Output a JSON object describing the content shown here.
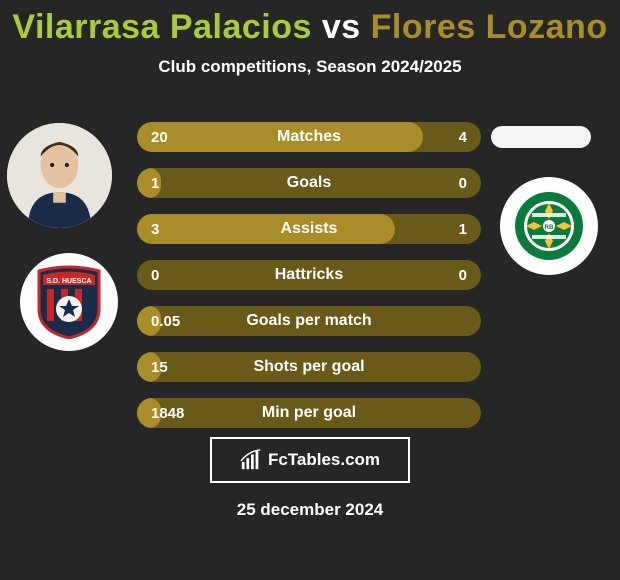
{
  "colors": {
    "background": "#262626",
    "title_p1": "#a8cc3c",
    "title_vs": "#ffffff",
    "title_p2": "#a98d28",
    "subtitle": "#ffffff",
    "row_bg": "#6a5a19",
    "row_fill": "#a98d28",
    "row_text": "#ffffff",
    "date_text": "#ffffff",
    "avatar_bg": "#f0f0f0",
    "club_bg": "#ffffff",
    "crest_left_main": "#1a2b4a",
    "crest_left_accent": "#c62828",
    "crest_left_ball": "#f2f2f2",
    "crest_right_outer": "#0a7a3d",
    "crest_right_inner": "#ffffff",
    "crest_right_star": "#f5c33b"
  },
  "typography": {
    "title_size": 34,
    "subtitle_size": 17,
    "row_label_size": 16,
    "row_val_size": 15,
    "date_size": 17
  },
  "header": {
    "player1": "Vilarrasa Palacios",
    "vs": "vs",
    "player2": "Flores Lozano",
    "subtitle": "Club competitions, Season 2024/2025"
  },
  "stats": {
    "rows": [
      {
        "label": "Matches",
        "left": "20",
        "right": "4",
        "fill_pct": 83
      },
      {
        "label": "Goals",
        "left": "1",
        "right": "0",
        "fill_pct": 7
      },
      {
        "label": "Assists",
        "left": "3",
        "right": "1",
        "fill_pct": 75
      },
      {
        "label": "Hattricks",
        "left": "0",
        "right": "0",
        "fill_pct": 0
      },
      {
        "label": "Goals per match",
        "left": "0.05",
        "right": "",
        "fill_pct": 7
      },
      {
        "label": "Shots per goal",
        "left": "15",
        "right": "",
        "fill_pct": 7
      },
      {
        "label": "Min per goal",
        "left": "1848",
        "right": "",
        "fill_pct": 7
      }
    ]
  },
  "branding": {
    "site": "FcTables.com"
  },
  "date": "25 december 2024",
  "clubs": {
    "left_name": "sd-huesca",
    "right_name": "real-betis"
  }
}
